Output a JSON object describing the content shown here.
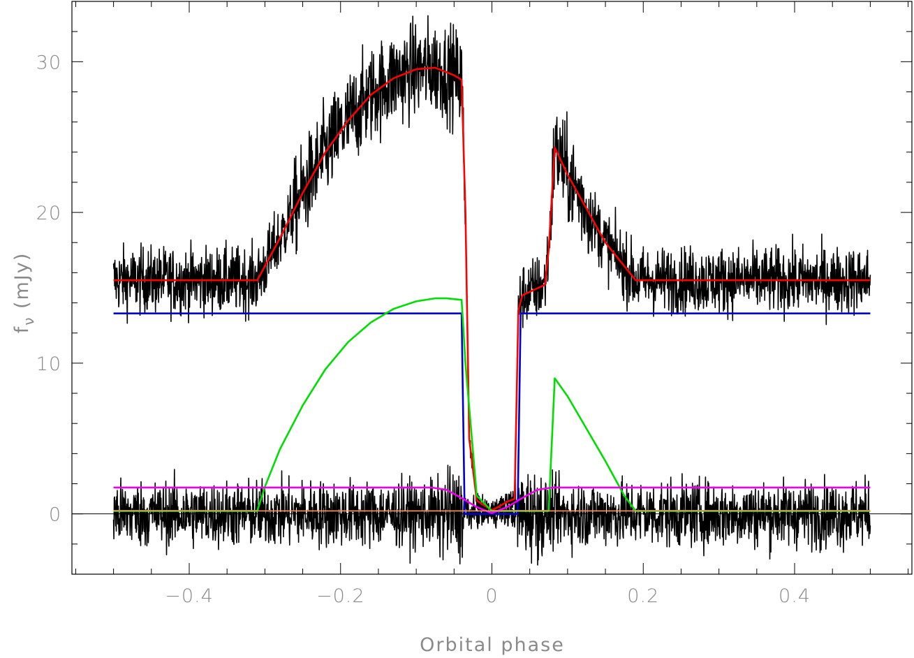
{
  "chart_data": {
    "type": "line",
    "title": "",
    "xlabel": "Orbital phase",
    "ylabel_main": "f",
    "ylabel_sub": "ν",
    "ylabel_unit": " (mJy)",
    "xlim": [
      -0.555,
      0.555
    ],
    "ylim": [
      -4,
      34
    ],
    "x_ticks": [
      -0.4,
      -0.2,
      0,
      0.2,
      0.4
    ],
    "x_tick_labels": [
      "−0.4",
      "−0.2",
      "0",
      "0.2",
      "0.4"
    ],
    "x_minor_step": 0.05,
    "y_ticks": [
      0,
      10,
      20,
      30
    ],
    "y_tick_labels": [
      "0",
      "10",
      "20",
      "30"
    ],
    "y_minor_step": 2,
    "grid": false,
    "legend": "none",
    "zero_line": true,
    "noise": {
      "data_amplitude": 1.1,
      "residual_amplitude": 1.1,
      "points": 2200,
      "color": "#000000"
    },
    "series": [
      {
        "role": "observed-data",
        "color": "#000000",
        "kind": "noisy",
        "follows": "total-model"
      },
      {
        "role": "residuals",
        "color": "#000000",
        "kind": "noisy",
        "follows": "zero"
      },
      {
        "role": "total-model",
        "color": "#ff0000",
        "x": [
          -0.5,
          -0.31,
          -0.28,
          -0.25,
          -0.22,
          -0.19,
          -0.16,
          -0.13,
          -0.1,
          -0.075,
          -0.05,
          -0.04,
          -0.035,
          -0.03,
          -0.02,
          -0.01,
          0,
          0.01,
          0.02,
          0.03,
          0.035,
          0.04,
          0.07,
          0.075,
          0.083,
          0.1,
          0.15,
          0.19,
          0.5
        ],
        "y": [
          15.5,
          15.5,
          18.3,
          21.3,
          24.0,
          26.1,
          27.8,
          28.9,
          29.5,
          29.6,
          29.1,
          28.8,
          20.0,
          5.0,
          0.9,
          0.55,
          0.25,
          0.5,
          0.8,
          1.0,
          13.5,
          14.5,
          15.2,
          17.5,
          24.3,
          22.5,
          18.0,
          15.5,
          15.5
        ]
      },
      {
        "role": "white-dwarf",
        "color": "#0000cc",
        "x": [
          -0.5,
          -0.04,
          -0.036,
          0.034,
          0.038,
          0.5
        ],
        "y": [
          13.3,
          13.3,
          0.0,
          0.0,
          13.3,
          13.3
        ]
      },
      {
        "role": "bright-spot",
        "color": "#00dd00",
        "x": [
          -0.5,
          -0.31,
          -0.3,
          -0.28,
          -0.25,
          -0.22,
          -0.19,
          -0.16,
          -0.13,
          -0.1,
          -0.075,
          -0.06,
          -0.04,
          -0.035,
          -0.02,
          0,
          0.075,
          0.083,
          0.1,
          0.15,
          0.175,
          0.19,
          0.5
        ],
        "y": [
          0.2,
          0.2,
          1.8,
          4.3,
          7.2,
          9.6,
          11.4,
          12.7,
          13.6,
          14.1,
          14.3,
          14.3,
          14.2,
          10.0,
          1.2,
          0.2,
          0.2,
          9.0,
          7.8,
          3.5,
          1.2,
          0.2,
          0.2
        ]
      },
      {
        "role": "disc",
        "color": "#ee00ee",
        "x": [
          -0.5,
          -0.08,
          -0.06,
          -0.04,
          -0.02,
          0,
          0.02,
          0.04,
          0.06,
          0.08,
          0.5
        ],
        "y": [
          1.75,
          1.75,
          1.6,
          1.05,
          0.45,
          0.05,
          0.45,
          1.05,
          1.6,
          1.75,
          1.75
        ]
      },
      {
        "role": "secondary",
        "color": "#ff9966",
        "x": [
          -0.5,
          0.5
        ],
        "y": [
          0.2,
          0.2
        ]
      }
    ]
  }
}
